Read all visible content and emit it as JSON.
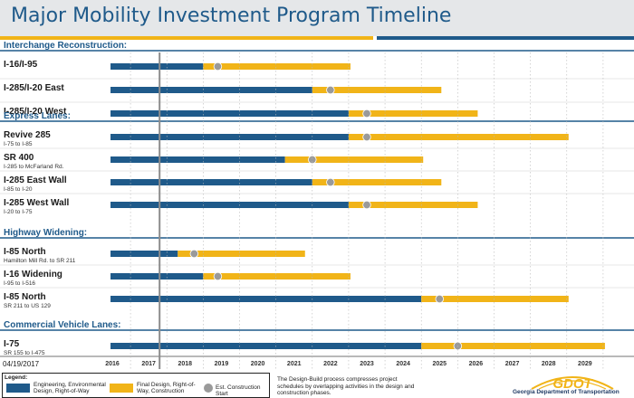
{
  "header": {
    "title": "Major Mobility Investment Program Timeline"
  },
  "colors": {
    "engineering": "#1f5a8a",
    "construction": "#f1b418",
    "start_marker": "#9a9a9a",
    "section": "#1f5a8a",
    "today_line": "#8c8c8c"
  },
  "chart_data": {
    "type": "gantt",
    "x_axis": {
      "min": 2015.85,
      "max": 2030.15,
      "ticks": [
        "2016",
        "2017",
        "2018",
        "2019",
        "2020",
        "2021",
        "2022",
        "2023",
        "2024",
        "2025",
        "2026",
        "2027",
        "2028",
        "2029"
      ]
    },
    "current_date_marker": 2017.3,
    "sections": [
      {
        "name": "Interchange Reconstruction:",
        "projects": [
          {
            "name": "I-16/I-95",
            "subtitle": "",
            "start": 2015.95,
            "eng_end": 2018.5,
            "end": 2022.55,
            "construction_start": 2018.9
          },
          {
            "name": "I-285/I-20 East",
            "subtitle": "",
            "start": 2015.95,
            "eng_end": 2021.5,
            "end": 2025.05,
            "construction_start": 2022.0
          },
          {
            "name": "I-285/I-20 West",
            "subtitle": "",
            "start": 2015.95,
            "eng_end": 2022.5,
            "end": 2026.05,
            "construction_start": 2023.0
          }
        ]
      },
      {
        "name": "Express Lanes:",
        "projects": [
          {
            "name": "Revive 285",
            "subtitle": "I-75 to I-85",
            "start": 2015.95,
            "eng_end": 2022.5,
            "end": 2028.55,
            "construction_start": 2023.0
          },
          {
            "name": "SR 400",
            "subtitle": "I-285 to McFarland Rd.",
            "start": 2015.95,
            "eng_end": 2020.75,
            "end": 2024.55,
            "construction_start": 2021.5
          },
          {
            "name": "I-285 East Wall",
            "subtitle": "I-85 to I-20",
            "start": 2015.95,
            "eng_end": 2021.5,
            "end": 2025.05,
            "construction_start": 2022.0
          },
          {
            "name": "I-285 West Wall",
            "subtitle": "I-20 to I-75",
            "start": 2015.95,
            "eng_end": 2022.5,
            "end": 2026.05,
            "construction_start": 2023.0
          }
        ]
      },
      {
        "name": "Highway Widening:",
        "projects": [
          {
            "name": "I-85 North",
            "subtitle": "Hamilton Mill Rd. to SR 211",
            "start": 2015.95,
            "eng_end": 2017.8,
            "end": 2021.3,
            "construction_start": 2018.25
          },
          {
            "name": "I-16 Widening",
            "subtitle": "I-95 to I-516",
            "start": 2015.95,
            "eng_end": 2018.5,
            "end": 2022.55,
            "construction_start": 2018.9
          },
          {
            "name": "I-85 North",
            "subtitle": "SR 211 to US 129",
            "start": 2015.95,
            "eng_end": 2024.5,
            "end": 2028.55,
            "construction_start": 2025.0
          }
        ]
      },
      {
        "name": "Commercial Vehicle Lanes:",
        "projects": [
          {
            "name": "I-75",
            "subtitle": "SR 155 to I-475",
            "start": 2015.95,
            "eng_end": 2024.5,
            "end": 2029.55,
            "construction_start": 2025.5
          }
        ]
      }
    ]
  },
  "legend": {
    "title": "Legend:",
    "engineering_label": "Engineering, Environmental Design, Right-of-Way",
    "construction_label": "Final Design, Right-of-Way, Construction",
    "marker_label": "Est. Construction Start"
  },
  "footer": {
    "date": "04/19/2017",
    "note": "The Design-Build process compresses project schedules by overlapping activities in the design and construction phases.",
    "logo": "GDOT",
    "org": "Georgia Department of Transportation"
  }
}
